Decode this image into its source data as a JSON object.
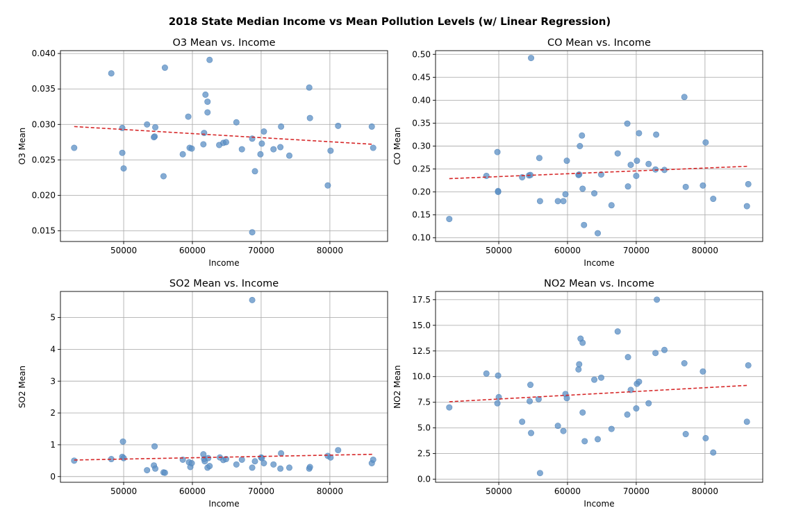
{
  "figure": {
    "title": "2018 State Median Income vs Mean Pollution Levels (w/ Linear Regression)"
  },
  "colors": {
    "point": "#5b8fc4",
    "regression": "#d62728",
    "grid": "#b0b0b0"
  },
  "chart_data": [
    {
      "type": "scatter",
      "title": "O3 Mean vs. Income",
      "xlabel": "Income",
      "ylabel": "O3 Mean",
      "xlim": [
        40800,
        88400
      ],
      "ylim": [
        0.0135,
        0.0404
      ],
      "xticks": [
        50000,
        60000,
        70000,
        80000
      ],
      "yticks": [
        0.015,
        0.02,
        0.025,
        0.03,
        0.035,
        0.04
      ],
      "ytick_labels": [
        "0.015",
        "0.020",
        "0.025",
        "0.030",
        "0.035",
        "0.040"
      ],
      "grid": true,
      "regression": {
        "x": [
          42800,
          86300
        ],
        "y": [
          0.0297,
          0.0272
        ]
      },
      "points": [
        [
          42800,
          0.0267
        ],
        [
          48200,
          0.0372
        ],
        [
          49800,
          0.0295
        ],
        [
          49800,
          0.026
        ],
        [
          50000,
          0.0238
        ],
        [
          53400,
          0.03
        ],
        [
          54500,
          0.0283
        ],
        [
          54600,
          0.0296
        ],
        [
          54400,
          0.0282
        ],
        [
          55800,
          0.0227
        ],
        [
          56000,
          0.038
        ],
        [
          58600,
          0.0258
        ],
        [
          59400,
          0.0311
        ],
        [
          59600,
          0.0267
        ],
        [
          59900,
          0.0266
        ],
        [
          61600,
          0.0272
        ],
        [
          61700,
          0.0288
        ],
        [
          61900,
          0.0342
        ],
        [
          62200,
          0.0332
        ],
        [
          62200,
          0.0317
        ],
        [
          62500,
          0.0391
        ],
        [
          63900,
          0.0271
        ],
        [
          64500,
          0.0274
        ],
        [
          64900,
          0.0275
        ],
        [
          66400,
          0.0303
        ],
        [
          67200,
          0.0265
        ],
        [
          68700,
          0.028
        ],
        [
          68700,
          0.0148
        ],
        [
          69100,
          0.0234
        ],
        [
          69900,
          0.0258
        ],
        [
          70100,
          0.0273
        ],
        [
          70400,
          0.029
        ],
        [
          71800,
          0.0265
        ],
        [
          72800,
          0.0268
        ],
        [
          72900,
          0.0297
        ],
        [
          74100,
          0.0256
        ],
        [
          77000,
          0.0352
        ],
        [
          77100,
          0.0309
        ],
        [
          79700,
          0.0214
        ],
        [
          80100,
          0.0263
        ],
        [
          81200,
          0.0298
        ],
        [
          86100,
          0.0297
        ],
        [
          86300,
          0.0267
        ]
      ]
    },
    {
      "type": "scatter",
      "title": "CO Mean vs. Income",
      "xlabel": "Income",
      "ylabel": "CO Mean",
      "xlim": [
        40800,
        88400
      ],
      "ylim": [
        0.092,
        0.508
      ],
      "xticks": [
        50000,
        60000,
        70000,
        80000
      ],
      "yticks": [
        0.1,
        0.15,
        0.2,
        0.25,
        0.3,
        0.35,
        0.4,
        0.45,
        0.5
      ],
      "ytick_labels": [
        "0.10",
        "0.15",
        "0.20",
        "0.25",
        "0.30",
        "0.35",
        "0.40",
        "0.45",
        "0.50"
      ],
      "grid": true,
      "regression": {
        "x": [
          42800,
          86300
        ],
        "y": [
          0.229,
          0.256
        ]
      },
      "points": [
        [
          42800,
          0.141
        ],
        [
          48200,
          0.235
        ],
        [
          49800,
          0.287
        ],
        [
          49900,
          0.202
        ],
        [
          49900,
          0.2
        ],
        [
          53400,
          0.232
        ],
        [
          54400,
          0.236
        ],
        [
          54600,
          0.237
        ],
        [
          54700,
          0.492
        ],
        [
          55900,
          0.274
        ],
        [
          56000,
          0.18
        ],
        [
          58600,
          0.18
        ],
        [
          59400,
          0.18
        ],
        [
          59700,
          0.195
        ],
        [
          59900,
          0.268
        ],
        [
          61600,
          0.237
        ],
        [
          61700,
          0.238
        ],
        [
          61800,
          0.3
        ],
        [
          62100,
          0.323
        ],
        [
          62200,
          0.207
        ],
        [
          62400,
          0.128
        ],
        [
          63900,
          0.197
        ],
        [
          64400,
          0.11
        ],
        [
          64900,
          0.238
        ],
        [
          66400,
          0.171
        ],
        [
          67300,
          0.284
        ],
        [
          68700,
          0.349
        ],
        [
          68800,
          0.212
        ],
        [
          69200,
          0.259
        ],
        [
          70000,
          0.235
        ],
        [
          70100,
          0.268
        ],
        [
          70400,
          0.328
        ],
        [
          71800,
          0.261
        ],
        [
          72800,
          0.249
        ],
        [
          72900,
          0.325
        ],
        [
          74100,
          0.248
        ],
        [
          77000,
          0.407
        ],
        [
          77200,
          0.211
        ],
        [
          79700,
          0.214
        ],
        [
          80100,
          0.308
        ],
        [
          81200,
          0.185
        ],
        [
          86100,
          0.169
        ],
        [
          86300,
          0.217
        ]
      ]
    },
    {
      "type": "scatter",
      "title": "SO2 Mean vs. Income",
      "xlabel": "Income",
      "ylabel": "SO2 Mean",
      "xlim": [
        40800,
        88400
      ],
      "ylim": [
        -0.18,
        5.82
      ],
      "xticks": [
        50000,
        60000,
        70000,
        80000
      ],
      "yticks": [
        0,
        1,
        2,
        3,
        4,
        5
      ],
      "ytick_labels": [
        "0",
        "1",
        "2",
        "3",
        "4",
        "5"
      ],
      "grid": true,
      "regression": {
        "x": [
          42800,
          86300
        ],
        "y": [
          0.52,
          0.7
        ]
      },
      "points": [
        [
          42800,
          0.5
        ],
        [
          48200,
          0.55
        ],
        [
          49800,
          0.62
        ],
        [
          49900,
          1.1
        ],
        [
          50000,
          0.58
        ],
        [
          53400,
          0.2
        ],
        [
          54400,
          0.35
        ],
        [
          54500,
          0.95
        ],
        [
          54600,
          0.25
        ],
        [
          55800,
          0.13
        ],
        [
          56000,
          0.12
        ],
        [
          58600,
          0.53
        ],
        [
          59500,
          0.45
        ],
        [
          59700,
          0.3
        ],
        [
          59900,
          0.42
        ],
        [
          61600,
          0.7
        ],
        [
          61700,
          0.55
        ],
        [
          61800,
          0.48
        ],
        [
          62200,
          0.28
        ],
        [
          62300,
          0.58
        ],
        [
          62500,
          0.33
        ],
        [
          64000,
          0.6
        ],
        [
          64500,
          0.52
        ],
        [
          64900,
          0.55
        ],
        [
          66400,
          0.38
        ],
        [
          67200,
          0.53
        ],
        [
          68700,
          5.55
        ],
        [
          68700,
          0.28
        ],
        [
          69100,
          0.48
        ],
        [
          70000,
          0.6
        ],
        [
          70100,
          0.58
        ],
        [
          70400,
          0.42
        ],
        [
          71800,
          0.38
        ],
        [
          72800,
          0.25
        ],
        [
          72900,
          0.73
        ],
        [
          74100,
          0.28
        ],
        [
          77000,
          0.25
        ],
        [
          77100,
          0.3
        ],
        [
          79700,
          0.65
        ],
        [
          80100,
          0.6
        ],
        [
          81200,
          0.83
        ],
        [
          86100,
          0.42
        ],
        [
          86300,
          0.53
        ]
      ]
    },
    {
      "type": "scatter",
      "title": "NO2 Mean vs. Income",
      "xlabel": "Income",
      "ylabel": "NO2 Mean",
      "xlim": [
        40800,
        88400
      ],
      "ylim": [
        -0.3,
        18.3
      ],
      "xticks": [
        50000,
        60000,
        70000,
        80000
      ],
      "yticks": [
        0.0,
        2.5,
        5.0,
        7.5,
        10.0,
        12.5,
        15.0,
        17.5
      ],
      "ytick_labels": [
        "0.0",
        "2.5",
        "5.0",
        "7.5",
        "10.0",
        "12.5",
        "15.0",
        "17.5"
      ],
      "grid": true,
      "regression": {
        "x": [
          42800,
          86300
        ],
        "y": [
          7.55,
          9.15
        ]
      },
      "points": [
        [
          42800,
          7.0
        ],
        [
          48200,
          10.3
        ],
        [
          49800,
          7.4
        ],
        [
          49900,
          10.1
        ],
        [
          50000,
          8.0
        ],
        [
          53400,
          5.6
        ],
        [
          54500,
          7.6
        ],
        [
          54600,
          9.2
        ],
        [
          54700,
          4.5
        ],
        [
          55800,
          7.8
        ],
        [
          56000,
          0.6
        ],
        [
          58600,
          5.2
        ],
        [
          59400,
          4.7
        ],
        [
          59700,
          8.3
        ],
        [
          59900,
          7.9
        ],
        [
          61600,
          10.7
        ],
        [
          61700,
          11.2
        ],
        [
          61900,
          13.7
        ],
        [
          62200,
          13.3
        ],
        [
          62200,
          6.5
        ],
        [
          62500,
          3.7
        ],
        [
          63900,
          9.7
        ],
        [
          64400,
          3.9
        ],
        [
          64900,
          9.9
        ],
        [
          66400,
          4.9
        ],
        [
          67300,
          14.4
        ],
        [
          68700,
          6.3
        ],
        [
          68800,
          11.9
        ],
        [
          69200,
          8.7
        ],
        [
          70000,
          6.9
        ],
        [
          70100,
          9.3
        ],
        [
          70400,
          9.5
        ],
        [
          71800,
          7.4
        ],
        [
          72800,
          12.3
        ],
        [
          73000,
          17.5
        ],
        [
          74100,
          12.6
        ],
        [
          77000,
          11.3
        ],
        [
          77200,
          4.4
        ],
        [
          79700,
          10.5
        ],
        [
          80100,
          4.0
        ],
        [
          81200,
          2.6
        ],
        [
          86100,
          5.6
        ],
        [
          86300,
          11.1
        ]
      ]
    }
  ]
}
